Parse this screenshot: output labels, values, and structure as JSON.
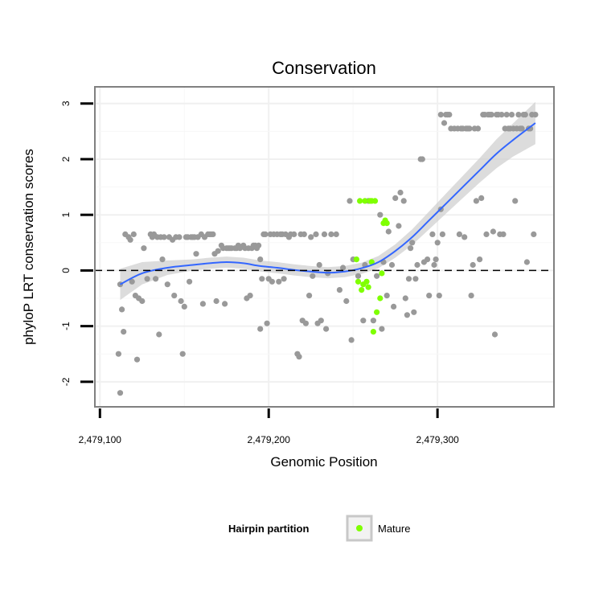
{
  "chart_data": {
    "type": "scatter",
    "title": "Conservation",
    "xlabel": "Genomic Position",
    "ylabel": "phyloP LRT conservation scores",
    "xlim": [
      2479097,
      2479369
    ],
    "ylim": [
      -2.45,
      3.3
    ],
    "x_ticks": [
      2479100,
      2479200,
      2479300
    ],
    "x_tick_labels": [
      "2,479,100",
      "2,479,200",
      "2,479,300"
    ],
    "y_ticks": [
      -2,
      -1,
      0,
      1,
      2,
      3
    ],
    "y_tick_labels": [
      "-2",
      "-1",
      "0",
      "1",
      "2",
      "3"
    ],
    "reference_line": {
      "y": 0,
      "style": "dashed",
      "color": "#000000"
    },
    "grid": true,
    "colors": {
      "other": "#999999",
      "mature": "#7fff00",
      "smooth": "#3366ff",
      "band": "#d0d0d0"
    },
    "series": [
      {
        "name": "Hairpin",
        "color": "#999999",
        "points": [
          [
            2479112,
            -0.25
          ],
          [
            2479111,
            -1.5
          ],
          [
            2479112,
            -2.2
          ],
          [
            2479113,
            -0.7
          ],
          [
            2479114,
            -1.1
          ],
          [
            2479115,
            0.65
          ],
          [
            2479117,
            0.6
          ],
          [
            2479118,
            0.55
          ],
          [
            2479119,
            -0.2
          ],
          [
            2479120,
            0.65
          ],
          [
            2479121,
            -0.45
          ],
          [
            2479122,
            -1.6
          ],
          [
            2479123,
            -0.5
          ],
          [
            2479125,
            -0.55
          ],
          [
            2479126,
            0.4
          ],
          [
            2479128,
            -0.15
          ],
          [
            2479130,
            0.65
          ],
          [
            2479131,
            0.6
          ],
          [
            2479132,
            0.65
          ],
          [
            2479133,
            -0.15
          ],
          [
            2479134,
            0.6
          ],
          [
            2479135,
            -1.15
          ],
          [
            2479136,
            0.6
          ],
          [
            2479137,
            0.2
          ],
          [
            2479138,
            0.6
          ],
          [
            2479140,
            -0.25
          ],
          [
            2479141,
            0.6
          ],
          [
            2479143,
            0.55
          ],
          [
            2479144,
            -0.45
          ],
          [
            2479145,
            0.6
          ],
          [
            2479147,
            0.6
          ],
          [
            2479148,
            -0.55
          ],
          [
            2479149,
            -1.5
          ],
          [
            2479150,
            -0.65
          ],
          [
            2479151,
            0.6
          ],
          [
            2479152,
            0.6
          ],
          [
            2479153,
            -0.2
          ],
          [
            2479154,
            0.6
          ],
          [
            2479155,
            0.6
          ],
          [
            2479156,
            0.6
          ],
          [
            2479157,
            0.3
          ],
          [
            2479158,
            0.6
          ],
          [
            2479160,
            0.65
          ],
          [
            2479161,
            -0.6
          ],
          [
            2479162,
            0.6
          ],
          [
            2479164,
            0.65
          ],
          [
            2479165,
            0.65
          ],
          [
            2479166,
            0.65
          ],
          [
            2479167,
            0.65
          ],
          [
            2479168,
            0.3
          ],
          [
            2479169,
            -0.55
          ],
          [
            2479170,
            0.35
          ],
          [
            2479172,
            0.45
          ],
          [
            2479173,
            0.4
          ],
          [
            2479174,
            -0.6
          ],
          [
            2479175,
            0.4
          ],
          [
            2479176,
            0.4
          ],
          [
            2479177,
            0.4
          ],
          [
            2479178,
            0.4
          ],
          [
            2479180,
            0.4
          ],
          [
            2479181,
            0.4
          ],
          [
            2479182,
            0.45
          ],
          [
            2479183,
            0.4
          ],
          [
            2479185,
            0.45
          ],
          [
            2479186,
            0.4
          ],
          [
            2479187,
            -0.5
          ],
          [
            2479188,
            0.4
          ],
          [
            2479189,
            -0.45
          ],
          [
            2479190,
            0.4
          ],
          [
            2479191,
            0.45
          ],
          [
            2479192,
            0.45
          ],
          [
            2479193,
            0.4
          ],
          [
            2479194,
            0.45
          ],
          [
            2479195,
            0.2
          ],
          [
            2479195,
            -1.05
          ],
          [
            2479196,
            -0.15
          ],
          [
            2479197,
            0.65
          ],
          [
            2479198,
            0.65
          ],
          [
            2479199,
            -0.95
          ],
          [
            2479200,
            -0.15
          ],
          [
            2479201,
            0.65
          ],
          [
            2479202,
            -0.2
          ],
          [
            2479203,
            0.65
          ],
          [
            2479205,
            0.65
          ],
          [
            2479206,
            -0.2
          ],
          [
            2479207,
            0.65
          ],
          [
            2479208,
            0.65
          ],
          [
            2479209,
            -0.15
          ],
          [
            2479210,
            0.65
          ],
          [
            2479212,
            0.6
          ],
          [
            2479213,
            0.65
          ],
          [
            2479215,
            0.65
          ],
          [
            2479217,
            -1.5
          ],
          [
            2479218,
            -1.55
          ],
          [
            2479219,
            0.65
          ],
          [
            2479220,
            -0.9
          ],
          [
            2479221,
            0.65
          ],
          [
            2479222,
            -0.95
          ],
          [
            2479224,
            -0.45
          ],
          [
            2479225,
            0.6
          ],
          [
            2479226,
            -0.1
          ],
          [
            2479228,
            0.65
          ],
          [
            2479229,
            -0.95
          ],
          [
            2479230,
            0.1
          ],
          [
            2479231,
            -0.9
          ],
          [
            2479233,
            0.65
          ],
          [
            2479234,
            -1.05
          ],
          [
            2479235,
            -0.05
          ],
          [
            2479237,
            0.65
          ],
          [
            2479240,
            0.65
          ],
          [
            2479242,
            -0.35
          ],
          [
            2479244,
            0.05
          ],
          [
            2479246,
            -0.55
          ],
          [
            2479248,
            1.25
          ],
          [
            2479249,
            -1.25
          ],
          [
            2479250,
            0.2
          ],
          [
            2479253,
            -0.1
          ],
          [
            2479256,
            -0.9
          ],
          [
            2479257,
            0.1
          ],
          [
            2479259,
            1.25
          ],
          [
            2479262,
            -0.9
          ],
          [
            2479264,
            -0.1
          ],
          [
            2479266,
            1.0
          ],
          [
            2479267,
            -1.05
          ],
          [
            2479268,
            0.15
          ],
          [
            2479270,
            -0.45
          ],
          [
            2479271,
            0.7
          ],
          [
            2479273,
            0.1
          ],
          [
            2479274,
            -0.65
          ],
          [
            2479275,
            1.3
          ],
          [
            2479277,
            0.8
          ],
          [
            2479278,
            1.4
          ],
          [
            2479280,
            1.25
          ],
          [
            2479281,
            -0.5
          ],
          [
            2479282,
            -0.8
          ],
          [
            2479283,
            -0.15
          ],
          [
            2479284,
            0.4
          ],
          [
            2479285,
            0.5
          ],
          [
            2479286,
            -0.75
          ],
          [
            2479287,
            -0.15
          ],
          [
            2479288,
            0.1
          ],
          [
            2479290,
            2.0
          ],
          [
            2479291,
            2.0
          ],
          [
            2479292,
            0.15
          ],
          [
            2479294,
            0.2
          ],
          [
            2479295,
            -0.45
          ],
          [
            2479297,
            0.65
          ],
          [
            2479298,
            0.1
          ],
          [
            2479299,
            0.2
          ],
          [
            2479300,
            0.5
          ],
          [
            2479301,
            -0.45
          ],
          [
            2479302,
            1.1
          ],
          [
            2479302,
            2.8
          ],
          [
            2479303,
            0.65
          ],
          [
            2479304,
            2.65
          ],
          [
            2479305,
            2.8
          ],
          [
            2479306,
            2.8
          ],
          [
            2479307,
            2.8
          ],
          [
            2479308,
            2.55
          ],
          [
            2479310,
            2.55
          ],
          [
            2479312,
            2.55
          ],
          [
            2479313,
            0.65
          ],
          [
            2479314,
            2.55
          ],
          [
            2479315,
            2.55
          ],
          [
            2479316,
            0.6
          ],
          [
            2479317,
            2.55
          ],
          [
            2479318,
            2.55
          ],
          [
            2479319,
            2.55
          ],
          [
            2479320,
            -0.45
          ],
          [
            2479321,
            0.1
          ],
          [
            2479322,
            2.55
          ],
          [
            2479323,
            1.25
          ],
          [
            2479324,
            2.55
          ],
          [
            2479325,
            0.2
          ],
          [
            2479326,
            1.3
          ],
          [
            2479327,
            2.8
          ],
          [
            2479328,
            2.8
          ],
          [
            2479329,
            0.65
          ],
          [
            2479330,
            2.8
          ],
          [
            2479331,
            2.8
          ],
          [
            2479332,
            2.8
          ],
          [
            2479333,
            0.7
          ],
          [
            2479334,
            -1.15
          ],
          [
            2479335,
            2.8
          ],
          [
            2479336,
            2.8
          ],
          [
            2479337,
            0.65
          ],
          [
            2479338,
            2.8
          ],
          [
            2479339,
            0.65
          ],
          [
            2479340,
            2.55
          ],
          [
            2479341,
            2.8
          ],
          [
            2479342,
            2.55
          ],
          [
            2479343,
            2.55
          ],
          [
            2479344,
            2.8
          ],
          [
            2479345,
            2.55
          ],
          [
            2479346,
            1.25
          ],
          [
            2479347,
            2.55
          ],
          [
            2479348,
            2.8
          ],
          [
            2479349,
            2.55
          ],
          [
            2479350,
            2.55
          ],
          [
            2479351,
            2.8
          ],
          [
            2479352,
            2.8
          ],
          [
            2479353,
            0.15
          ],
          [
            2479354,
            2.55
          ],
          [
            2479355,
            2.55
          ],
          [
            2479356,
            2.8
          ],
          [
            2479357,
            0.65
          ],
          [
            2479358,
            2.8
          ]
        ]
      },
      {
        "name": "Mature",
        "color": "#7fff00",
        "points": [
          [
            2479252,
            0.2
          ],
          [
            2479253,
            -0.2
          ],
          [
            2479254,
            1.25
          ],
          [
            2479255,
            -0.35
          ],
          [
            2479256,
            -0.25
          ],
          [
            2479257,
            1.25
          ],
          [
            2479258,
            -0.2
          ],
          [
            2479259,
            -0.3
          ],
          [
            2479260,
            1.25
          ],
          [
            2479261,
            1.25
          ],
          [
            2479261,
            0.15
          ],
          [
            2479262,
            -1.1
          ],
          [
            2479263,
            1.25
          ],
          [
            2479264,
            -0.75
          ],
          [
            2479266,
            -0.5
          ],
          [
            2479267,
            -0.05
          ],
          [
            2479268,
            0.85
          ],
          [
            2479269,
            0.9
          ],
          [
            2479270,
            0.85
          ]
        ]
      }
    ],
    "smooth": {
      "method": "loess",
      "x": [
        2479112,
        2479125,
        2479140,
        2479155,
        2479165,
        2479175,
        2479185,
        2479195,
        2479205,
        2479215,
        2479225,
        2479235,
        2479245,
        2479255,
        2479265,
        2479275,
        2479285,
        2479295,
        2479305,
        2479315,
        2479325,
        2479335,
        2479345,
        2479358
      ],
      "y": [
        -0.25,
        -0.05,
        0.05,
        0.1,
        0.13,
        0.15,
        0.13,
        0.08,
        0.05,
        0.01,
        -0.02,
        -0.04,
        -0.02,
        0.04,
        0.15,
        0.35,
        0.6,
        0.9,
        1.2,
        1.5,
        1.8,
        2.1,
        2.35,
        2.65
      ],
      "band_half_width": [
        0.28,
        0.2,
        0.13,
        0.1,
        0.1,
        0.1,
        0.1,
        0.1,
        0.1,
        0.1,
        0.1,
        0.1,
        0.1,
        0.1,
        0.11,
        0.12,
        0.14,
        0.16,
        0.18,
        0.2,
        0.22,
        0.26,
        0.3,
        0.38
      ]
    },
    "legend": {
      "title": "Hairpin partition",
      "entries": [
        {
          "label": "Mature",
          "color": "#7fff00"
        }
      ],
      "position": "bottom"
    }
  }
}
